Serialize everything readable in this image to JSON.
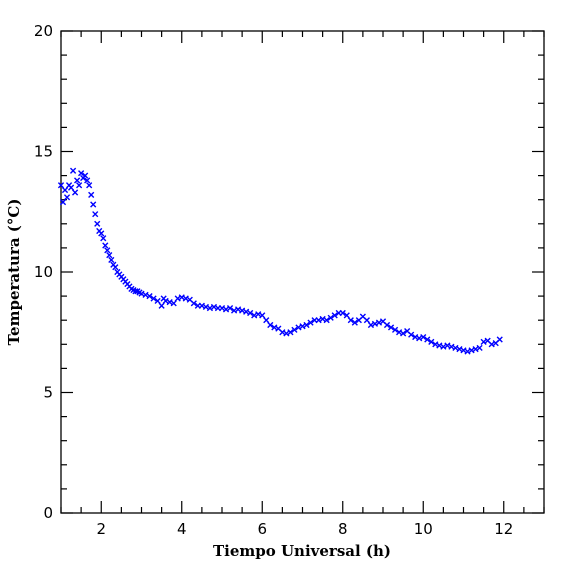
{
  "chart_data": {
    "type": "scatter",
    "title": "",
    "xlabel": "Tiempo Universal (h)",
    "ylabel": "Temperatura (°C)",
    "xlim": [
      1.0,
      13.0
    ],
    "ylim": [
      0,
      20
    ],
    "xticks": [
      2,
      4,
      6,
      8,
      10,
      12
    ],
    "yticks": [
      0,
      5,
      10,
      15,
      20
    ],
    "grid": false,
    "marker": "x",
    "color": "#0000ff",
    "series": [
      {
        "x": [
          1.0,
          1.05,
          1.1,
          1.15,
          1.2,
          1.25,
          1.3,
          1.35,
          1.4,
          1.45,
          1.5,
          1.55,
          1.6,
          1.65,
          1.7,
          1.75,
          1.8,
          1.85,
          1.9,
          1.95,
          2.0,
          2.05,
          2.1,
          2.15,
          2.2,
          2.25,
          2.3,
          2.35,
          2.4,
          2.45,
          2.5,
          2.55,
          2.6,
          2.65,
          2.7,
          2.75,
          2.8,
          2.85,
          2.9,
          2.95,
          3.0,
          3.1,
          3.2,
          3.3,
          3.4,
          3.5,
          3.55,
          3.6,
          3.7,
          3.8,
          3.9,
          4.0,
          4.1,
          4.2,
          4.3,
          4.4,
          4.5,
          4.6,
          4.7,
          4.8,
          4.9,
          5.0,
          5.1,
          5.2,
          5.3,
          5.4,
          5.5,
          5.6,
          5.7,
          5.8,
          5.9,
          6.0,
          6.1,
          6.2,
          6.3,
          6.4,
          6.5,
          6.6,
          6.7,
          6.8,
          6.9,
          7.0,
          7.1,
          7.2,
          7.3,
          7.4,
          7.5,
          7.6,
          7.7,
          7.8,
          7.9,
          8.0,
          8.1,
          8.2,
          8.3,
          8.4,
          8.5,
          8.6,
          8.7,
          8.8,
          8.9,
          9.0,
          9.1,
          9.2,
          9.3,
          9.4,
          9.5,
          9.6,
          9.7,
          9.8,
          9.9,
          10.0,
          10.1,
          10.2,
          10.3,
          10.4,
          10.5,
          10.6,
          10.7,
          10.8,
          10.9,
          11.0,
          11.1,
          11.2,
          11.3,
          11.4,
          11.5,
          11.6,
          11.7,
          11.8,
          11.9
        ],
        "y": [
          13.6,
          12.9,
          13.4,
          13.1,
          13.6,
          13.5,
          14.2,
          13.3,
          13.8,
          13.6,
          14.1,
          13.9,
          14.0,
          13.8,
          13.6,
          13.2,
          12.8,
          12.4,
          12.0,
          11.7,
          11.6,
          11.4,
          11.1,
          10.9,
          10.7,
          10.5,
          10.3,
          10.2,
          10.0,
          9.9,
          9.8,
          9.7,
          9.6,
          9.5,
          9.4,
          9.3,
          9.25,
          9.2,
          9.2,
          9.15,
          9.1,
          9.05,
          9.0,
          8.9,
          8.8,
          8.6,
          8.9,
          8.8,
          8.75,
          8.7,
          8.9,
          8.95,
          8.9,
          8.85,
          8.7,
          8.6,
          8.6,
          8.55,
          8.5,
          8.55,
          8.5,
          8.5,
          8.45,
          8.5,
          8.4,
          8.45,
          8.4,
          8.35,
          8.3,
          8.2,
          8.25,
          8.2,
          8.0,
          7.8,
          7.7,
          7.65,
          7.5,
          7.45,
          7.5,
          7.6,
          7.7,
          7.75,
          7.8,
          7.9,
          8.0,
          8.0,
          8.05,
          8.0,
          8.1,
          8.2,
          8.3,
          8.3,
          8.2,
          8.0,
          7.9,
          8.0,
          8.15,
          8.0,
          7.8,
          7.85,
          7.9,
          7.95,
          7.8,
          7.7,
          7.6,
          7.5,
          7.45,
          7.55,
          7.4,
          7.3,
          7.25,
          7.3,
          7.2,
          7.1,
          7.0,
          6.95,
          6.9,
          6.95,
          6.9,
          6.85,
          6.8,
          6.75,
          6.7,
          6.75,
          6.8,
          6.85,
          7.1,
          7.15,
          7.0,
          7.05,
          7.2
        ]
      }
    ]
  }
}
